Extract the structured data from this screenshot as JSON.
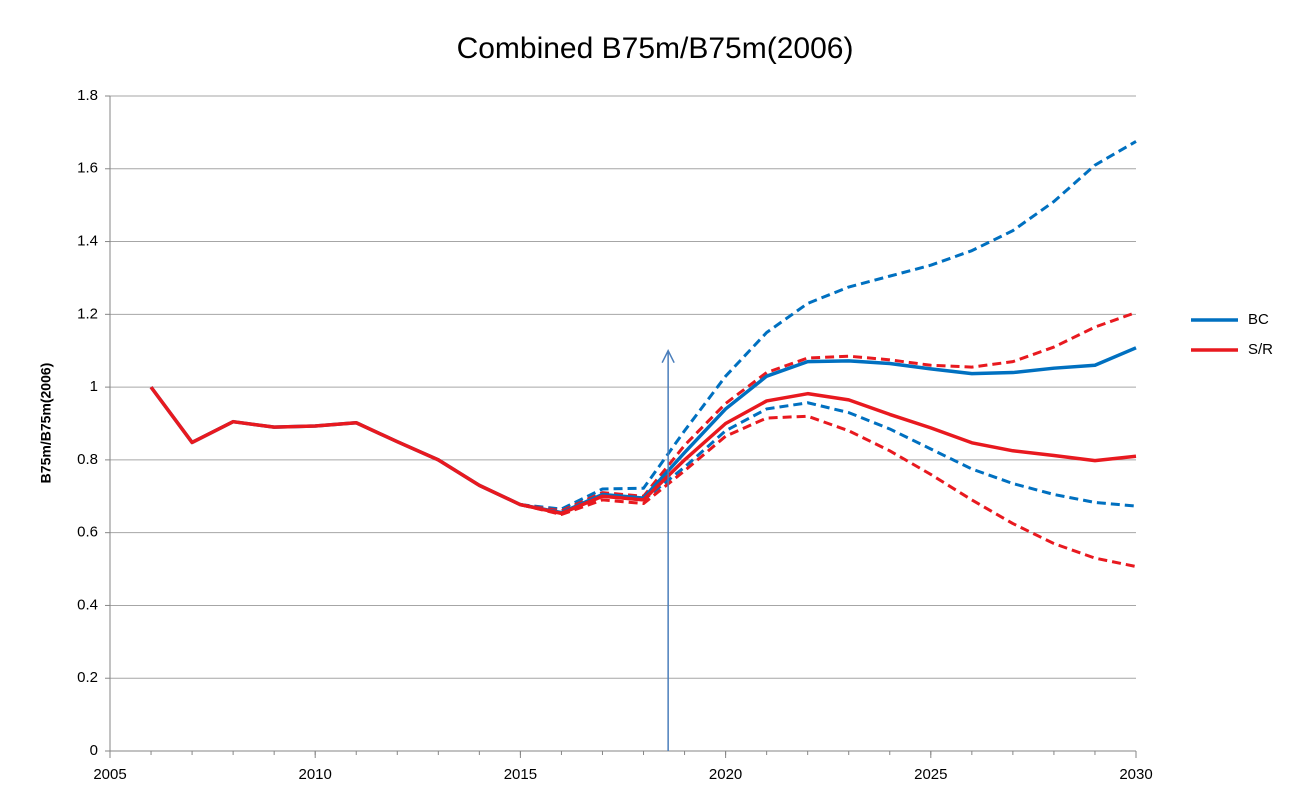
{
  "chart_data": {
    "type": "line",
    "title": "Combined B75m/B75m(2006)",
    "y_label": "B75m/B75m(2006)",
    "x": [
      2006,
      2007,
      2008,
      2009,
      2010,
      2011,
      2012,
      2013,
      2014,
      2015,
      2016,
      2017,
      2018,
      2019,
      2020,
      2021,
      2022,
      2023,
      2024,
      2025,
      2026,
      2027,
      2028,
      2029,
      2030
    ],
    "series": [
      {
        "name": "BC",
        "color": "#0070c0",
        "values": [
          1.0,
          0.848,
          0.905,
          0.89,
          0.893,
          0.902,
          0.85,
          0.8,
          0.73,
          0.677,
          0.655,
          0.705,
          0.695,
          0.82,
          0.94,
          1.03,
          1.07,
          1.072,
          1.065,
          1.05,
          1.037,
          1.04,
          1.052,
          1.06,
          1.108
        ],
        "upper": [
          null,
          null,
          null,
          null,
          null,
          null,
          null,
          null,
          null,
          0.677,
          0.665,
          0.72,
          0.722,
          0.88,
          1.03,
          1.15,
          1.23,
          1.275,
          1.305,
          1.335,
          1.375,
          1.43,
          1.51,
          1.61,
          1.675
        ],
        "lower": [
          null,
          null,
          null,
          null,
          null,
          null,
          null,
          null,
          null,
          0.677,
          0.655,
          0.7,
          0.69,
          0.78,
          0.88,
          0.94,
          0.957,
          0.93,
          0.885,
          0.83,
          0.775,
          0.735,
          0.705,
          0.683,
          0.673
        ]
      },
      {
        "name": "S/R",
        "color": "#e8191f",
        "values": [
          1.0,
          0.848,
          0.905,
          0.89,
          0.893,
          0.902,
          0.85,
          0.8,
          0.73,
          0.677,
          0.653,
          0.7,
          0.69,
          0.8,
          0.9,
          0.962,
          0.982,
          0.965,
          0.925,
          0.888,
          0.847,
          0.825,
          0.812,
          0.798,
          0.81
        ],
        "upper": [
          null,
          null,
          null,
          null,
          null,
          null,
          null,
          null,
          null,
          0.677,
          0.66,
          0.71,
          0.7,
          0.84,
          0.955,
          1.04,
          1.08,
          1.085,
          1.075,
          1.06,
          1.055,
          1.07,
          1.11,
          1.165,
          1.205
        ],
        "lower": [
          null,
          null,
          null,
          null,
          null,
          null,
          null,
          null,
          null,
          0.677,
          0.65,
          0.69,
          0.68,
          0.77,
          0.865,
          0.915,
          0.92,
          0.88,
          0.825,
          0.76,
          0.69,
          0.625,
          0.57,
          0.53,
          0.507
        ]
      }
    ],
    "arrow": {
      "x": 2018.6,
      "y0": 0,
      "y1": 1.1,
      "color": "#4a7ebb"
    },
    "xlim": [
      2005,
      2030
    ],
    "xticks": [
      2005,
      2010,
      2015,
      2020,
      2025,
      2030
    ],
    "ylim": [
      0,
      1.8
    ],
    "yticks": [
      0,
      0.2,
      0.4,
      0.6,
      0.8,
      1,
      1.2,
      1.4,
      1.6,
      1.8
    ],
    "grid": true,
    "legend": "right"
  }
}
